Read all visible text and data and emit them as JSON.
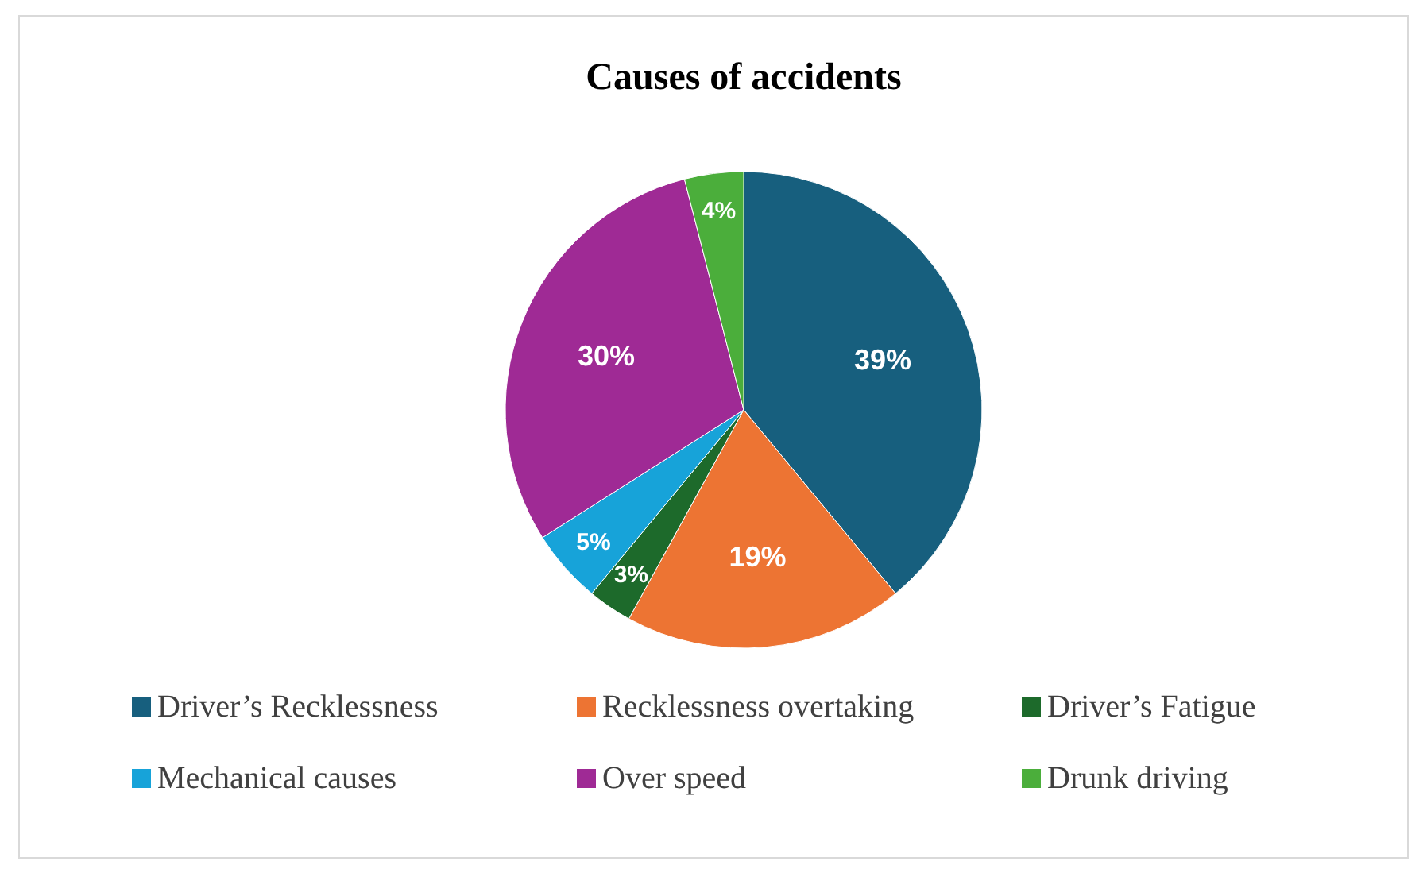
{
  "chart_data": {
    "type": "pie",
    "title": "Causes of accidents",
    "categories": [
      "Driver’s Recklessness",
      "Recklessness overtaking",
      "Driver’s Fatigue",
      "Mechanical causes",
      "Over speed",
      "Drunk driving"
    ],
    "values": [
      39,
      19,
      3,
      5,
      30,
      4
    ],
    "value_labels": [
      "39%",
      "19%",
      "3%",
      "5%",
      "30%",
      "4%"
    ],
    "colors": [
      "#175f7e",
      "#ed7433",
      "#1d6a2b",
      "#17a3d9",
      "#9f2a95",
      "#4bae3b"
    ],
    "legend": "bottom"
  }
}
